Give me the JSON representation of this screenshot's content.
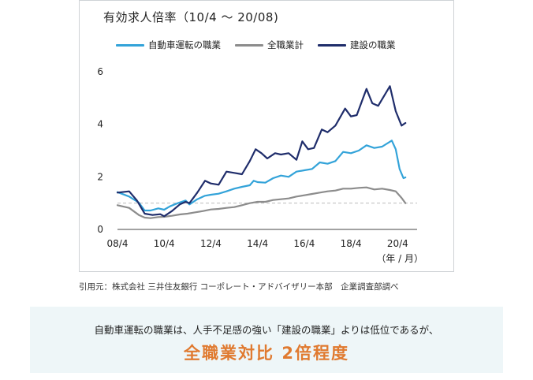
{
  "chart_data": {
    "type": "line",
    "title": "有効求人倍率（10/4 ～ 20/08)",
    "xlabel": "",
    "ylabel": "",
    "x_unit": "（年 / 月）",
    "xlim": [
      "2008-04",
      "2021-02"
    ],
    "ylim": [
      0,
      6
    ],
    "yticks": [
      0,
      2,
      4,
      6
    ],
    "xticks": [
      "08/4",
      "10/4",
      "12/4",
      "14/4",
      "16/4",
      "18/4",
      "20/4"
    ],
    "reference_line": 1,
    "legend_position": "top",
    "series": [
      {
        "name": "自動車運転の職業",
        "color": "#33a3d9",
        "points": [
          [
            "2008-04",
            1.42
          ],
          [
            "2008-10",
            1.25
          ],
          [
            "2009-03",
            1.02
          ],
          [
            "2009-06",
            0.72
          ],
          [
            "2009-09",
            0.72
          ],
          [
            "2010-01",
            0.8
          ],
          [
            "2010-04",
            0.75
          ],
          [
            "2010-07",
            0.88
          ],
          [
            "2010-11",
            1.0
          ],
          [
            "2011-03",
            1.1
          ],
          [
            "2011-05",
            0.95
          ],
          [
            "2011-09",
            1.15
          ],
          [
            "2012-01",
            1.28
          ],
          [
            "2012-04",
            1.32
          ],
          [
            "2012-08",
            1.36
          ],
          [
            "2012-12",
            1.45
          ],
          [
            "2013-04",
            1.55
          ],
          [
            "2013-08",
            1.62
          ],
          [
            "2013-12",
            1.68
          ],
          [
            "2014-02",
            1.85
          ],
          [
            "2014-04",
            1.8
          ],
          [
            "2014-08",
            1.78
          ],
          [
            "2014-12",
            1.95
          ],
          [
            "2015-04",
            2.05
          ],
          [
            "2015-08",
            2.0
          ],
          [
            "2015-12",
            2.2
          ],
          [
            "2016-04",
            2.25
          ],
          [
            "2016-08",
            2.3
          ],
          [
            "2016-12",
            2.55
          ],
          [
            "2017-04",
            2.5
          ],
          [
            "2017-08",
            2.6
          ],
          [
            "2017-12",
            2.95
          ],
          [
            "2018-04",
            2.9
          ],
          [
            "2018-08",
            3.0
          ],
          [
            "2018-12",
            3.2
          ],
          [
            "2019-04",
            3.1
          ],
          [
            "2019-08",
            3.15
          ],
          [
            "2020-01",
            3.38
          ],
          [
            "2020-03",
            3.05
          ],
          [
            "2020-05",
            2.3
          ],
          [
            "2020-07",
            1.95
          ],
          [
            "2020-08",
            1.98
          ]
        ]
      },
      {
        "name": "全職業計",
        "color": "#8c8c8c",
        "points": [
          [
            "2008-04",
            0.92
          ],
          [
            "2008-10",
            0.82
          ],
          [
            "2009-03",
            0.55
          ],
          [
            "2009-06",
            0.45
          ],
          [
            "2009-09",
            0.43
          ],
          [
            "2010-01",
            0.47
          ],
          [
            "2010-04",
            0.48
          ],
          [
            "2010-08",
            0.52
          ],
          [
            "2010-12",
            0.57
          ],
          [
            "2011-04",
            0.6
          ],
          [
            "2011-08",
            0.65
          ],
          [
            "2011-12",
            0.7
          ],
          [
            "2012-04",
            0.76
          ],
          [
            "2012-08",
            0.78
          ],
          [
            "2012-12",
            0.82
          ],
          [
            "2013-04",
            0.85
          ],
          [
            "2013-08",
            0.92
          ],
          [
            "2013-12",
            1.0
          ],
          [
            "2014-04",
            1.05
          ],
          [
            "2014-08",
            1.05
          ],
          [
            "2014-12",
            1.12
          ],
          [
            "2015-04",
            1.15
          ],
          [
            "2015-08",
            1.18
          ],
          [
            "2015-12",
            1.25
          ],
          [
            "2016-04",
            1.3
          ],
          [
            "2016-08",
            1.35
          ],
          [
            "2016-12",
            1.4
          ],
          [
            "2017-04",
            1.45
          ],
          [
            "2017-08",
            1.48
          ],
          [
            "2017-12",
            1.55
          ],
          [
            "2018-04",
            1.55
          ],
          [
            "2018-08",
            1.58
          ],
          [
            "2018-12",
            1.6
          ],
          [
            "2019-04",
            1.52
          ],
          [
            "2019-08",
            1.55
          ],
          [
            "2019-12",
            1.5
          ],
          [
            "2020-03",
            1.45
          ],
          [
            "2020-06",
            1.2
          ],
          [
            "2020-08",
            1.0
          ]
        ]
      },
      {
        "name": "建設の職業",
        "color": "#1f2d6b",
        "points": [
          [
            "2008-04",
            1.4
          ],
          [
            "2008-10",
            1.45
          ],
          [
            "2009-02",
            1.1
          ],
          [
            "2009-06",
            0.6
          ],
          [
            "2009-10",
            0.55
          ],
          [
            "2010-02",
            0.58
          ],
          [
            "2010-04",
            0.5
          ],
          [
            "2010-08",
            0.7
          ],
          [
            "2010-12",
            0.95
          ],
          [
            "2011-03",
            1.05
          ],
          [
            "2011-05",
            1.0
          ],
          [
            "2011-09",
            1.4
          ],
          [
            "2012-01",
            1.85
          ],
          [
            "2012-04",
            1.75
          ],
          [
            "2012-08",
            1.7
          ],
          [
            "2012-12",
            2.2
          ],
          [
            "2013-04",
            2.15
          ],
          [
            "2013-08",
            2.1
          ],
          [
            "2013-12",
            2.6
          ],
          [
            "2014-03",
            3.05
          ],
          [
            "2014-06",
            2.9
          ],
          [
            "2014-09",
            2.7
          ],
          [
            "2015-01",
            2.9
          ],
          [
            "2015-04",
            2.85
          ],
          [
            "2015-08",
            2.9
          ],
          [
            "2015-12",
            2.65
          ],
          [
            "2016-03",
            3.35
          ],
          [
            "2016-06",
            3.05
          ],
          [
            "2016-09",
            3.1
          ],
          [
            "2017-01",
            3.8
          ],
          [
            "2017-04",
            3.7
          ],
          [
            "2017-08",
            3.95
          ],
          [
            "2018-01",
            4.6
          ],
          [
            "2018-04",
            4.3
          ],
          [
            "2018-07",
            4.35
          ],
          [
            "2018-12",
            5.35
          ],
          [
            "2019-03",
            4.8
          ],
          [
            "2019-06",
            4.7
          ],
          [
            "2019-12",
            5.45
          ],
          [
            "2020-03",
            4.5
          ],
          [
            "2020-06",
            3.95
          ],
          [
            "2020-08",
            4.05
          ]
        ]
      }
    ]
  },
  "source_text": "引用元：株式会社 三井住友銀行 コーポレート・アドバイザリー本部　企業調査部調べ",
  "note": {
    "text": "自動車運転の職業は、人手不足感の強い「建設の職業」よりは低位であるが、",
    "highlight": "全職業対比 2倍程度"
  }
}
